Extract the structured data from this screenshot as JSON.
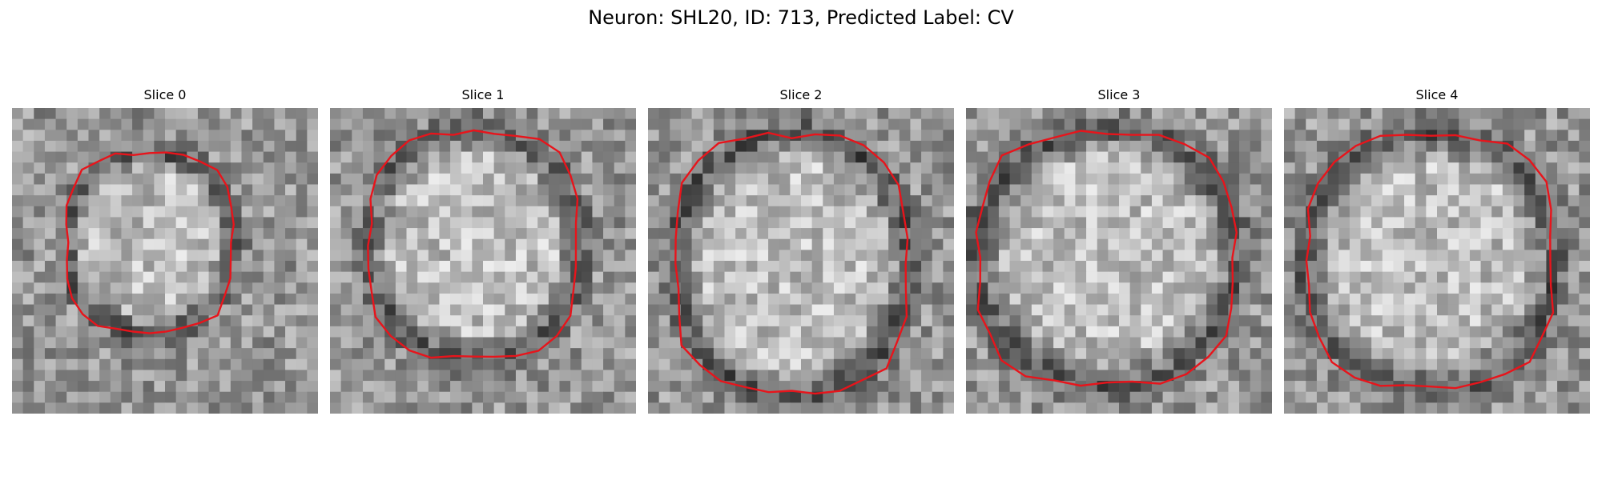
{
  "figure": {
    "title": "Neuron: SHL20, ID: 713, Predicted Label: CV"
  },
  "panels": [
    {
      "title": "Slice 0"
    },
    {
      "title": "Slice 1"
    },
    {
      "title": "Slice 2"
    },
    {
      "title": "Slice 3"
    },
    {
      "title": "Slice 4"
    }
  ],
  "colors": {
    "contour": "#e8141b",
    "background": "#ffffff"
  }
}
